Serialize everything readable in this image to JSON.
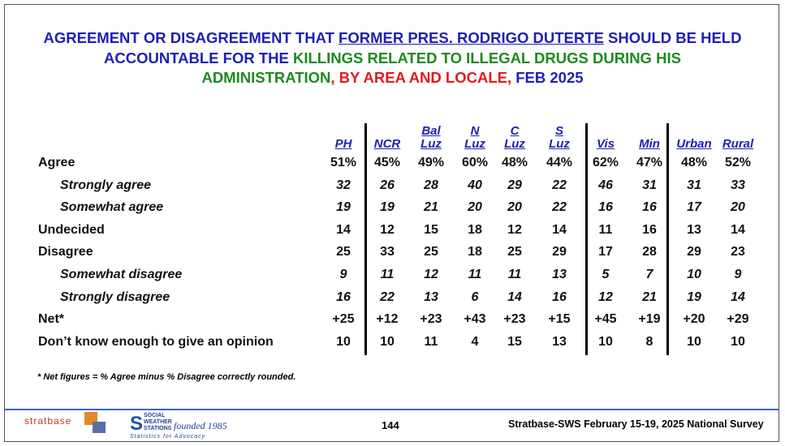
{
  "title": {
    "lines": [
      [
        {
          "text": "AGREEMENT OR DISAGREEMENT THAT ",
          "color": "#1f1fb4"
        },
        {
          "text": "FORMER PRES. RODRIGO DUTERTE",
          "color": "#1f1fb4",
          "underline": true
        },
        {
          "text": " SHOULD BE HELD",
          "color": "#1f1fb4"
        }
      ],
      [
        {
          "text": "ACCOUNTABLE FOR THE ",
          "color": "#1f1fb4"
        },
        {
          "text": "KILLINGS RELATED TO ILLEGAL DRUGS DURING HIS",
          "color": "#1e8a1e"
        }
      ],
      [
        {
          "text": "ADMINISTRATION",
          "color": "#1e8a1e"
        },
        {
          "text": ", BY AREA AND LOCALE,",
          "color": "#e01b1b"
        },
        {
          "text": " FEB 2025",
          "color": "#1f1fb4"
        }
      ]
    ]
  },
  "table": {
    "columns": [
      [
        "PH"
      ],
      [
        "NCR"
      ],
      [
        "Bal",
        "Luz"
      ],
      [
        "N",
        "Luz"
      ],
      [
        "C",
        "Luz"
      ],
      [
        "S",
        "Luz"
      ],
      [
        "Vis"
      ],
      [
        "Min"
      ],
      [
        "Urban"
      ],
      [
        "Rural"
      ]
    ],
    "rows": [
      {
        "label": "Agree",
        "italic": false,
        "values": [
          "51%",
          "45%",
          "49%",
          "60%",
          "48%",
          "44%",
          "62%",
          "47%",
          "48%",
          "52%"
        ]
      },
      {
        "label": "Strongly agree",
        "italic": true,
        "values": [
          "32",
          "26",
          "28",
          "40",
          "29",
          "22",
          "46",
          "31",
          "31",
          "33"
        ]
      },
      {
        "label": "Somewhat agree",
        "italic": true,
        "values": [
          "19",
          "19",
          "21",
          "20",
          "20",
          "22",
          "16",
          "16",
          "17",
          "20"
        ]
      },
      {
        "label": "Undecided",
        "italic": false,
        "values": [
          "14",
          "12",
          "15",
          "18",
          "12",
          "14",
          "11",
          "16",
          "13",
          "14"
        ]
      },
      {
        "label": "Disagree",
        "italic": false,
        "values": [
          "25",
          "33",
          "25",
          "18",
          "25",
          "29",
          "17",
          "28",
          "29",
          "23"
        ]
      },
      {
        "label": "Somewhat disagree",
        "italic": true,
        "values": [
          "9",
          "11",
          "12",
          "11",
          "11",
          "13",
          "5",
          "7",
          "10",
          "9"
        ]
      },
      {
        "label": "Strongly disagree",
        "italic": true,
        "values": [
          "16",
          "22",
          "13",
          "6",
          "14",
          "16",
          "12",
          "21",
          "19",
          "14"
        ]
      },
      {
        "label": "Net*",
        "italic": false,
        "values": [
          "+25",
          "+12",
          "+23",
          "+43",
          "+23",
          "+15",
          "+45",
          "+19",
          "+20",
          "+29"
        ]
      },
      {
        "label": "Don’t know enough to give an opinion",
        "italic": false,
        "values": [
          "10",
          "10",
          "11",
          "4",
          "15",
          "13",
          "10",
          "8",
          "10",
          "10"
        ]
      }
    ],
    "note": "* Net figures = % Agree minus % Disagree correctly rounded."
  },
  "footer": {
    "logo1": "stratbase",
    "logo2_lines": [
      "SOCIAL",
      "WEATHER",
      "STATIONS"
    ],
    "logo2_founded": "founded 1985",
    "logo2_tagline": "Statistics for Advocacy",
    "page": "144",
    "source": "Stratbase-SWS February 15-19, 2025 National Survey"
  }
}
